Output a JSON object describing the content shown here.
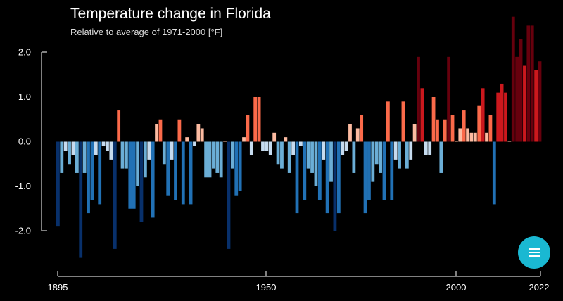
{
  "chart_data": {
    "type": "bar",
    "title": "Temperature change in Florida",
    "subtitle": "Relative to average of 1971-2000  [°F]",
    "xlabel": "",
    "ylabel": "",
    "x_start": 1895,
    "x_end": 2022,
    "x_ticks": [
      "1895",
      "1950",
      "2000",
      "2022"
    ],
    "y_ticks": [
      "2.0",
      "1.0",
      "0.0",
      "-1.0",
      "-2.0"
    ],
    "ylim": [
      -2.3,
      2.8
    ],
    "grid": false,
    "legend": "none",
    "x": [
      1895,
      1896,
      1897,
      1898,
      1899,
      1900,
      1901,
      1902,
      1903,
      1904,
      1905,
      1906,
      1907,
      1908,
      1909,
      1910,
      1911,
      1912,
      1913,
      1914,
      1915,
      1916,
      1917,
      1918,
      1919,
      1920,
      1921,
      1922,
      1923,
      1924,
      1925,
      1926,
      1927,
      1928,
      1929,
      1930,
      1931,
      1932,
      1933,
      1934,
      1935,
      1936,
      1937,
      1938,
      1939,
      1940,
      1941,
      1942,
      1943,
      1944,
      1945,
      1946,
      1947,
      1948,
      1949,
      1950,
      1951,
      1952,
      1953,
      1954,
      1955,
      1956,
      1957,
      1958,
      1959,
      1960,
      1961,
      1962,
      1963,
      1964,
      1965,
      1966,
      1967,
      1968,
      1969,
      1970,
      1971,
      1972,
      1973,
      1974,
      1975,
      1976,
      1977,
      1978,
      1979,
      1980,
      1981,
      1982,
      1983,
      1984,
      1985,
      1986,
      1987,
      1988,
      1989,
      1990,
      1991,
      1992,
      1993,
      1994,
      1995,
      1996,
      1997,
      1998,
      1999,
      2000,
      2001,
      2002,
      2003,
      2004,
      2005,
      2006,
      2007,
      2008,
      2009,
      2010,
      2011,
      2012,
      2013,
      2014,
      2015,
      2016,
      2017,
      2018,
      2019,
      2020,
      2021,
      2022
    ],
    "values": [
      -1.9,
      -0.7,
      -0.2,
      -0.5,
      -0.3,
      -0.7,
      -2.6,
      -0.7,
      -1.6,
      -1.3,
      -0.3,
      -1.4,
      -0.1,
      -0.2,
      -0.4,
      -2.4,
      0.7,
      -0.6,
      -0.6,
      -1.5,
      -1.5,
      -1.0,
      -1.8,
      -0.8,
      -0.4,
      -1.7,
      0.4,
      0.5,
      -0.5,
      -1.2,
      -0.4,
      -1.3,
      0.5,
      -1.4,
      0.1,
      -1.4,
      -0.1,
      0.4,
      0.3,
      -0.8,
      -0.8,
      -0.6,
      -0.7,
      -0.8,
      0.0,
      -2.4,
      -0.6,
      -1.2,
      -1.1,
      0.1,
      0.6,
      -0.3,
      1.0,
      1.0,
      -0.2,
      -0.2,
      -0.3,
      0.2,
      -0.5,
      -0.6,
      0.1,
      -0.7,
      -0.3,
      -1.6,
      -0.1,
      -1.3,
      -0.6,
      -0.7,
      -1.0,
      -1.3,
      -0.4,
      -1.6,
      -0.9,
      -2.0,
      -1.6,
      -0.3,
      -0.2,
      0.4,
      -0.7,
      0.3,
      0.6,
      -1.6,
      -1.3,
      -0.9,
      -0.5,
      -0.7,
      -1.3,
      0.9,
      -1.3,
      -0.4,
      -0.6,
      0.9,
      -0.6,
      -0.4,
      0.4,
      1.9,
      1.2,
      -0.3,
      -0.3,
      1.0,
      0.5,
      -0.7,
      0.5,
      1.9,
      0.6,
      0.0,
      0.3,
      0.7,
      0.3,
      0.2,
      0.2,
      0.8,
      1.2,
      0.2,
      0.6,
      -1.4,
      1.1,
      1.3,
      1.1,
      0.0,
      2.8,
      1.9,
      2.3,
      1.7,
      2.6,
      2.6,
      1.6,
      1.8
    ]
  },
  "colors": {
    "background": "#000000",
    "axis": "#ffffff",
    "menu_button": "#1ab8d2",
    "warm_scale": [
      "#fcbba1",
      "#fb6a4a",
      "#cb181d",
      "#67000d"
    ],
    "cool_scale": [
      "#c6dbef",
      "#6baed6",
      "#2171b5",
      "#08306b"
    ]
  },
  "menu_button": {
    "icon": "hamburger-menu-icon"
  }
}
